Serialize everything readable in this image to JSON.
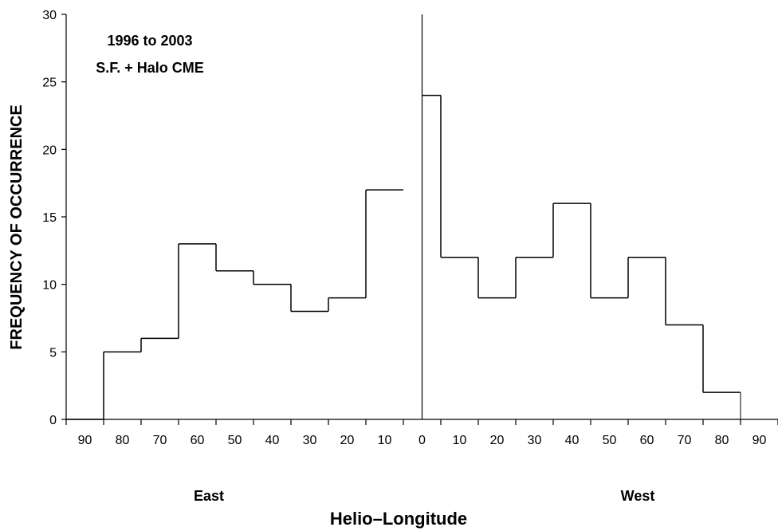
{
  "chart_data": {
    "type": "bar",
    "title_lines": [
      "1996 to 2003",
      "S.F. + Halo CME"
    ],
    "xlabel": "Helio–Longitude",
    "ylabel": "FREQUENCY OF OCCURRENCE",
    "side_labels": {
      "left": "East",
      "right": "West"
    },
    "ylim": [
      0,
      30
    ],
    "yticks": [
      0,
      5,
      10,
      15,
      20,
      25,
      30
    ],
    "xlim": [
      -95,
      95
    ],
    "xticks": [
      -90,
      -80,
      -70,
      -60,
      -50,
      -40,
      -30,
      -20,
      -10,
      0,
      10,
      20,
      30,
      40,
      50,
      60,
      70,
      80,
      90
    ],
    "xtick_labels": [
      "90",
      "80",
      "70",
      "60",
      "50",
      "40",
      "30",
      "20",
      "10",
      "0",
      "10",
      "20",
      "30",
      "40",
      "50",
      "60",
      "70",
      "80",
      "90"
    ],
    "grid": false,
    "series": [
      {
        "bins": [
          {
            "from": -95,
            "to": -85,
            "value": 0
          },
          {
            "from": -85,
            "to": -75,
            "value": 5
          },
          {
            "from": -75,
            "to": -65,
            "value": 6
          },
          {
            "from": -65,
            "to": -55,
            "value": 13
          },
          {
            "from": -55,
            "to": -45,
            "value": 11
          },
          {
            "from": -45,
            "to": -35,
            "value": 10
          },
          {
            "from": -35,
            "to": -25,
            "value": 8
          },
          {
            "from": -25,
            "to": -15,
            "value": 9
          },
          {
            "from": -15,
            "to": -5,
            "value": 17
          },
          {
            "from": 0,
            "to": 5,
            "value": 24
          },
          {
            "from": 5,
            "to": 15,
            "value": 12
          },
          {
            "from": 15,
            "to": 25,
            "value": 9
          },
          {
            "from": 25,
            "to": 35,
            "value": 12
          },
          {
            "from": 35,
            "to": 45,
            "value": 16
          },
          {
            "from": 45,
            "to": 55,
            "value": 9
          },
          {
            "from": 55,
            "to": 65,
            "value": 12
          },
          {
            "from": 65,
            "to": 75,
            "value": 7
          },
          {
            "from": 75,
            "to": 85,
            "value": 2
          }
        ]
      }
    ]
  }
}
